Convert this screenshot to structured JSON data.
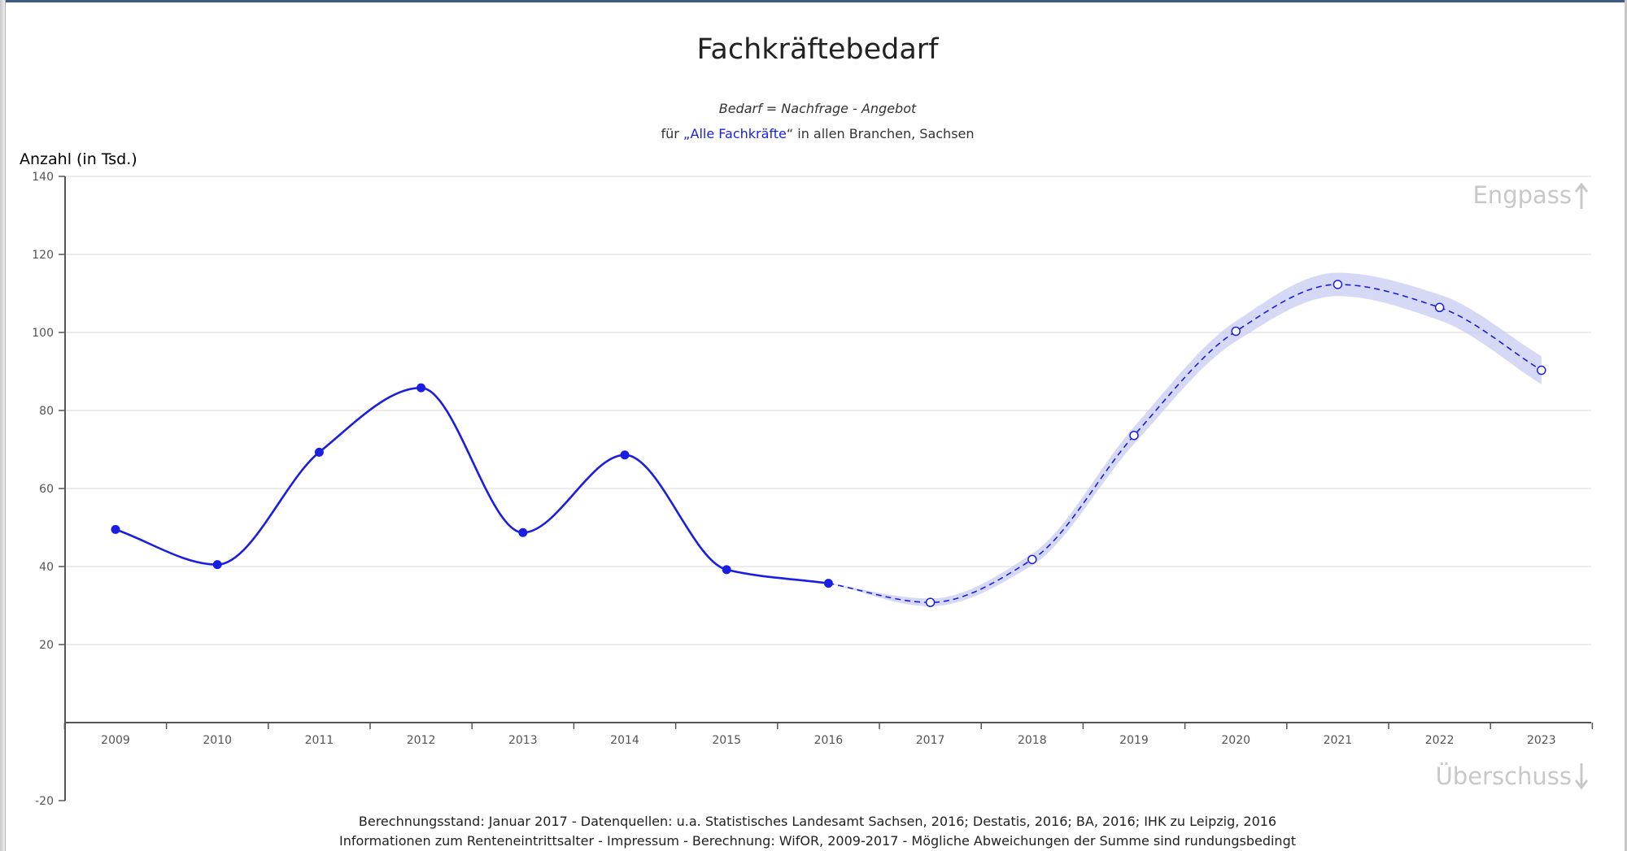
{
  "chart_data": {
    "type": "line",
    "title": "Fachkräftebedarf",
    "subtitle": "Bedarf = Nachfrage - Angebot",
    "subtitle2": {
      "prefix": "für ",
      "open_quote": "„",
      "link_text": "Alle Fachkräfte",
      "close_quote": "“",
      "suffix": " in allen Branchen, Sachsen"
    },
    "ylabel": "Anzahl (in Tsd.)",
    "xlabel": "",
    "ylim": [
      -20,
      140
    ],
    "y_ticks": [
      140,
      120,
      100,
      80,
      60,
      40,
      20,
      -20
    ],
    "categories": [
      "2009",
      "2010",
      "2011",
      "2012",
      "2013",
      "2014",
      "2015",
      "2016",
      "2017",
      "2018",
      "2019",
      "2020",
      "2021",
      "2022",
      "2023"
    ],
    "series": [
      {
        "style": "solid, filled markers (actual)",
        "x": [
          "2009",
          "2010",
          "2011",
          "2012",
          "2013",
          "2014",
          "2015",
          "2016"
        ],
        "values": [
          49.5,
          40.5,
          69.3,
          85.8,
          48.7,
          68.6,
          39.2,
          35.7
        ]
      },
      {
        "style": "dashed, hollow markers, shaded uncertainty band (forecast)",
        "x": [
          "2016",
          "2017",
          "2018",
          "2019",
          "2020",
          "2021",
          "2022",
          "2023"
        ],
        "values": [
          35.7,
          30.8,
          41.8,
          73.6,
          100.3,
          112.3,
          106.4,
          90.3
        ],
        "band_halfwidth": [
          0,
          1.0,
          1.5,
          2.2,
          2.6,
          3.0,
          3.3,
          3.6
        ]
      }
    ],
    "annotations": {
      "top_right": "Engpass",
      "bottom_right": "Überschuss"
    },
    "colors": {
      "line": "#1a1ee0",
      "band": "#c5c9f2",
      "grid": "#e6e6e6",
      "axis": "#555555",
      "link": "#1a1ee0"
    },
    "grid": true,
    "legend": "none"
  },
  "footer": {
    "line1": "Berechnungsstand: Januar 2017 - Datenquellen: u.a. Statistisches Landesamt Sachsen, 2016; Destatis, 2016; BA, 2016; IHK zu Leipzig, 2016",
    "line2": "Informationen zum Renteneintrittsalter - Impressum - Berechnung: WifOR, 2009-2017 - Mögliche Abweichungen der Summe sind rundungsbedingt"
  }
}
